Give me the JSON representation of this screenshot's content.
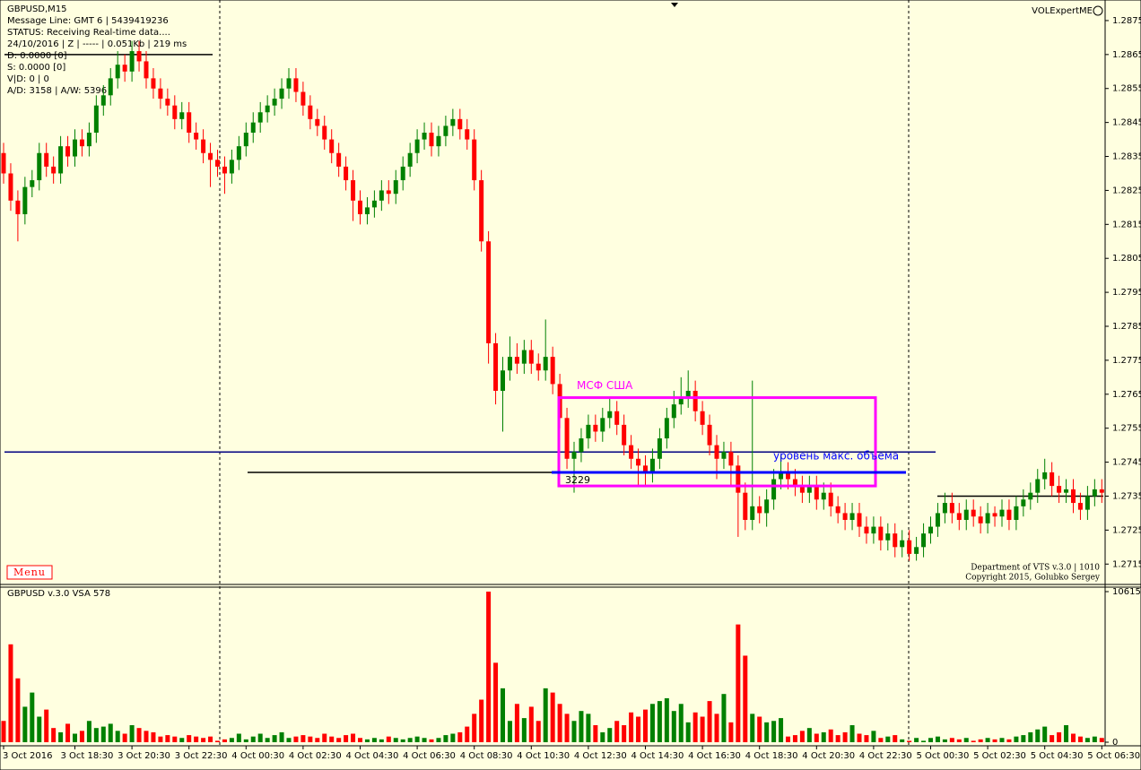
{
  "chart_data": [
    {
      "type": "candlestick",
      "title": "GBPUSD,M15",
      "info": [
        "Message Line: GMT 6 | 5439419236",
        "STATUS:  Receiving Real-time data....",
        "24/10/2016 | Z | ----- | 0.051Kb | 219 ms",
        "D: 0.0000  [0]",
        "S: 0.0000  [0]",
        "V|D: 0 | 0",
        "A/D: 3158 | A/W: 5396"
      ],
      "corner_label": "VOLExpertME",
      "menu": "Menu",
      "credits": [
        "Department of VTS  v.3.0 | 1010",
        "Copyright 2015, Golubko Sergey"
      ],
      "up_color": "#008000",
      "down_color": "#ff0000",
      "ylim": [
        1.2709,
        1.288
      ],
      "yticks": [
        1.2875,
        1.2865,
        1.2855,
        1.2845,
        1.2835,
        1.2825,
        1.2815,
        1.2805,
        1.2795,
        1.2785,
        1.2775,
        1.2765,
        1.2755,
        1.2745,
        1.2735,
        1.2725,
        1.2715
      ],
      "levels": [
        {
          "value": 1.2865,
          "color": "#000000"
        },
        {
          "value": 1.2748,
          "color": "#000080"
        },
        {
          "value": 1.2742,
          "color": "#000000"
        },
        {
          "value": 1.2735,
          "color": "#000000"
        }
      ],
      "zone": {
        "label": "МСФ США",
        "ylim": [
          1.2738,
          1.2764
        ],
        "color": "#ff00ff"
      },
      "max_volume_level": {
        "label": "уровень макс. объема",
        "value": 1.2742,
        "color": "#0000ff",
        "volume": "3229"
      },
      "open": [
        1.2836,
        1.283,
        1.2822,
        1.2818,
        1.2826,
        1.2828,
        1.2836,
        1.2832,
        1.283,
        1.2838,
        1.2835,
        1.284,
        1.2838,
        1.2842,
        1.285,
        1.2853,
        1.2858,
        1.2862,
        1.286,
        1.2866,
        1.2863,
        1.2858,
        1.2855,
        1.2852,
        1.285,
        1.2846,
        1.2848,
        1.2842,
        1.284,
        1.2836,
        1.2834,
        1.2832,
        1.283,
        1.2834,
        1.2838,
        1.2842,
        1.2845,
        1.2848,
        1.285,
        1.2852,
        1.2855,
        1.2858,
        1.2854,
        1.285,
        1.2846,
        1.2844,
        1.284,
        1.2836,
        1.2832,
        1.2828,
        1.2822,
        1.2818,
        1.282,
        1.2822,
        1.2825,
        1.2824,
        1.2828,
        1.2832,
        1.2836,
        1.284,
        1.2842,
        1.2838,
        1.2841,
        1.2844,
        1.2846,
        1.2843,
        1.284,
        1.2828,
        1.281,
        1.278,
        1.2766,
        1.2772,
        1.2776,
        1.2774,
        1.2778,
        1.2774,
        1.2772,
        1.2776,
        1.2768,
        1.2758,
        1.2746,
        1.2748,
        1.2752,
        1.2756,
        1.2754,
        1.2758,
        1.276,
        1.2756,
        1.275,
        1.2746,
        1.2744,
        1.2742,
        1.2746,
        1.2752,
        1.2758,
        1.2762,
        1.2764,
        1.2766,
        1.276,
        1.2756,
        1.275,
        1.2746,
        1.2748,
        1.2744,
        1.2736,
        1.2728,
        1.2732,
        1.273,
        1.2734,
        1.274,
        1.2742,
        1.274,
        1.2738,
        1.2736,
        1.2738,
        1.2734,
        1.2736,
        1.2732,
        1.273,
        1.2728,
        1.273,
        1.2726,
        1.2724,
        1.2726,
        1.2722,
        1.2724,
        1.272,
        1.2722,
        1.2718,
        1.272,
        1.2724,
        1.2726,
        1.273,
        1.2733,
        1.273,
        1.2728,
        1.2731,
        1.2729,
        1.2727,
        1.273,
        1.2729,
        1.2731,
        1.2728,
        1.2732,
        1.2734,
        1.2736,
        1.274,
        1.2742,
        1.2738,
        1.2736,
        1.2737,
        1.2733,
        1.2731,
        1.2735,
        1.2737
      ],
      "high": [
        1.2839,
        1.2833,
        1.2825,
        1.2829,
        1.2831,
        1.2839,
        1.2839,
        1.2835,
        1.2841,
        1.2841,
        1.2843,
        1.2843,
        1.2845,
        1.2853,
        1.2856,
        1.2861,
        1.2866,
        1.2865,
        1.2869,
        1.2869,
        1.2866,
        1.2861,
        1.2858,
        1.2855,
        1.2853,
        1.2851,
        1.2851,
        1.2845,
        1.2843,
        1.2839,
        1.2837,
        1.2835,
        1.2837,
        1.2841,
        1.2845,
        1.2848,
        1.2851,
        1.2853,
        1.2855,
        1.2858,
        1.2861,
        1.2861,
        1.2857,
        1.2853,
        1.2849,
        1.2847,
        1.2843,
        1.2839,
        1.2835,
        1.2831,
        1.2825,
        1.2823,
        1.2825,
        1.2828,
        1.2828,
        1.2831,
        1.2835,
        1.2839,
        1.2843,
        1.2845,
        1.2845,
        1.2844,
        1.2847,
        1.2849,
        1.2849,
        1.2846,
        1.2843,
        1.2831,
        1.2813,
        1.2783,
        1.2776,
        1.2782,
        1.278,
        1.2781,
        1.2781,
        1.2777,
        1.2787,
        1.2779,
        1.2771,
        1.2761,
        1.2751,
        1.2755,
        1.2759,
        1.2759,
        1.2761,
        1.2764,
        1.2763,
        1.2759,
        1.2753,
        1.2749,
        1.2747,
        1.2749,
        1.2755,
        1.2761,
        1.2766,
        1.277,
        1.2772,
        1.2769,
        1.2763,
        1.2759,
        1.2753,
        1.2751,
        1.2751,
        1.2747,
        1.2739,
        1.2769,
        1.2735,
        1.2737,
        1.2743,
        1.2747,
        1.2745,
        1.2743,
        1.2741,
        1.2741,
        1.2741,
        1.2739,
        1.2739,
        1.2735,
        1.2733,
        1.2733,
        1.2733,
        1.2729,
        1.2729,
        1.2729,
        1.2727,
        1.2727,
        1.2725,
        1.2725,
        1.2723,
        1.2727,
        1.2729,
        1.2733,
        1.2736,
        1.2736,
        1.2733,
        1.2734,
        1.2734,
        1.2732,
        1.2733,
        1.2732,
        1.2734,
        1.2734,
        1.2735,
        1.2737,
        1.2739,
        1.2743,
        1.2746,
        1.2745,
        1.2741,
        1.274,
        1.274,
        1.2736,
        1.2738,
        1.274,
        1.274
      ],
      "low": [
        1.2827,
        1.2819,
        1.281,
        1.2815,
        1.2823,
        1.2825,
        1.2829,
        1.2827,
        1.2827,
        1.2832,
        1.2832,
        1.2835,
        1.2835,
        1.2839,
        1.2847,
        1.285,
        1.2855,
        1.2857,
        1.2857,
        1.286,
        1.2855,
        1.2852,
        1.2849,
        1.2847,
        1.2843,
        1.2843,
        1.2839,
        1.2837,
        1.2833,
        1.2826,
        1.2829,
        1.2824,
        1.2827,
        1.2831,
        1.2835,
        1.2839,
        1.2842,
        1.2845,
        1.2847,
        1.2849,
        1.2852,
        1.2851,
        1.2847,
        1.2843,
        1.2841,
        1.2837,
        1.2833,
        1.2829,
        1.2825,
        1.2816,
        1.2815,
        1.2815,
        1.2817,
        1.2819,
        1.2821,
        1.2821,
        1.2825,
        1.2829,
        1.2833,
        1.2837,
        1.2835,
        1.2835,
        1.2838,
        1.2841,
        1.284,
        1.2837,
        1.2825,
        1.2807,
        1.2774,
        1.2762,
        1.2754,
        1.2769,
        1.2771,
        1.2771,
        1.2771,
        1.2769,
        1.2769,
        1.2765,
        1.2755,
        1.2743,
        1.2736,
        1.2745,
        1.2749,
        1.2751,
        1.2751,
        1.2755,
        1.2753,
        1.2747,
        1.2743,
        1.2738,
        1.2738,
        1.2739,
        1.2743,
        1.2749,
        1.2755,
        1.2759,
        1.2761,
        1.2757,
        1.2753,
        1.2747,
        1.274,
        1.2743,
        1.2738,
        1.2723,
        1.2725,
        1.2725,
        1.2727,
        1.2726,
        1.2731,
        1.2737,
        1.2737,
        1.2735,
        1.2733,
        1.2733,
        1.2731,
        1.2731,
        1.2729,
        1.2727,
        1.2725,
        1.2725,
        1.2723,
        1.2721,
        1.2721,
        1.2719,
        1.2719,
        1.2717,
        1.2717,
        1.2716,
        1.2716,
        1.2717,
        1.2721,
        1.2723,
        1.2727,
        1.2727,
        1.2725,
        1.2725,
        1.2726,
        1.2724,
        1.2724,
        1.2726,
        1.2726,
        1.2725,
        1.2725,
        1.2729,
        1.2731,
        1.2733,
        1.2737,
        1.2735,
        1.2733,
        1.2733,
        1.273,
        1.2728,
        1.2728,
        1.2732,
        1.2733
      ],
      "close": [
        1.283,
        1.2822,
        1.2818,
        1.2826,
        1.2828,
        1.2836,
        1.2832,
        1.283,
        1.2838,
        1.2835,
        1.284,
        1.2838,
        1.2842,
        1.285,
        1.2853,
        1.2858,
        1.2862,
        1.286,
        1.2866,
        1.2863,
        1.2858,
        1.2855,
        1.2852,
        1.285,
        1.2846,
        1.2848,
        1.2842,
        1.284,
        1.2836,
        1.2834,
        1.2832,
        1.283,
        1.2834,
        1.2838,
        1.2842,
        1.2845,
        1.2848,
        1.285,
        1.2852,
        1.2855,
        1.2858,
        1.2854,
        1.285,
        1.2846,
        1.2844,
        1.284,
        1.2836,
        1.2832,
        1.2828,
        1.2822,
        1.2818,
        1.282,
        1.2822,
        1.2825,
        1.2824,
        1.2828,
        1.2832,
        1.2836,
        1.284,
        1.2842,
        1.2838,
        1.2841,
        1.2844,
        1.2846,
        1.2843,
        1.284,
        1.2828,
        1.281,
        1.278,
        1.2766,
        1.2772,
        1.2776,
        1.2774,
        1.2778,
        1.2774,
        1.2772,
        1.2776,
        1.2768,
        1.2758,
        1.2746,
        1.2748,
        1.2752,
        1.2756,
        1.2754,
        1.2758,
        1.276,
        1.2756,
        1.275,
        1.2746,
        1.2744,
        1.2742,
        1.2746,
        1.2752,
        1.2758,
        1.2762,
        1.2764,
        1.2766,
        1.276,
        1.2756,
        1.275,
        1.2746,
        1.2748,
        1.2744,
        1.2736,
        1.2728,
        1.2732,
        1.273,
        1.2734,
        1.274,
        1.2742,
        1.274,
        1.2738,
        1.2736,
        1.2738,
        1.2734,
        1.2736,
        1.2732,
        1.273,
        1.2728,
        1.273,
        1.2726,
        1.2724,
        1.2726,
        1.2722,
        1.2724,
        1.272,
        1.2722,
        1.2718,
        1.272,
        1.2724,
        1.2726,
        1.273,
        1.2733,
        1.273,
        1.2728,
        1.2731,
        1.2729,
        1.2727,
        1.273,
        1.2729,
        1.2731,
        1.2728,
        1.2732,
        1.2734,
        1.2736,
        1.274,
        1.2742,
        1.2738,
        1.2736,
        1.2737,
        1.2733,
        1.2731,
        1.2735,
        1.2737,
        1.2736
      ]
    },
    {
      "type": "bar",
      "title": "GBPUSD v.3.0 VSA 578",
      "ylim": [
        0,
        10615
      ],
      "yticks": [
        0,
        10615
      ],
      "categories": [
        "3 Oct 2016",
        null,
        null,
        null,
        null,
        null,
        null,
        null,
        null,
        null,
        "3 Oct 18:30",
        null,
        null,
        null,
        null,
        null,
        null,
        null,
        "3 Oct 20:30",
        null,
        null,
        null,
        null,
        null,
        null,
        null,
        "3 Oct 22:30",
        null,
        null,
        null,
        null,
        null,
        null,
        null,
        "4 Oct 00:30",
        null,
        null,
        null,
        null,
        null,
        null,
        null,
        "4 Oct 02:30",
        null,
        null,
        null,
        null,
        null,
        null,
        null,
        "4 Oct 04:30",
        null,
        null,
        null,
        null,
        null,
        null,
        null,
        "4 Oct 06:30",
        null,
        null,
        null,
        null,
        null,
        null,
        null,
        "4 Oct 08:30",
        null,
        null,
        null,
        null,
        null,
        null,
        null,
        "4 Oct 10:30",
        null,
        null,
        null,
        null,
        null,
        null,
        null,
        "4 Oct 12:30",
        null,
        null,
        null,
        null,
        null,
        null,
        null,
        "4 Oct 14:30",
        null,
        null,
        null,
        null,
        null,
        null,
        null,
        "4 Oct 16:30",
        null,
        null,
        null,
        null,
        null,
        null,
        null,
        "4 Oct 18:30",
        null,
        null,
        null,
        null,
        null,
        null,
        null,
        "4 Oct 20:30",
        null,
        null,
        null,
        null,
        null,
        null,
        null,
        "4 Oct 22:30",
        null,
        null,
        null,
        null,
        null,
        null,
        null,
        "5 Oct 00:30",
        null,
        null,
        null,
        null,
        null,
        null,
        null,
        "5 Oct 02:30",
        null,
        null,
        null,
        null,
        null,
        null,
        null,
        "5 Oct 04:30",
        null,
        null,
        null,
        null,
        null,
        null,
        null,
        "5 Oct 06:30"
      ],
      "values": [
        1500,
        6900,
        4500,
        2500,
        3500,
        1800,
        2300,
        1000,
        700,
        1300,
        600,
        800,
        1500,
        1000,
        1100,
        1300,
        800,
        600,
        1200,
        1000,
        800,
        700,
        400,
        500,
        400,
        300,
        500,
        400,
        300,
        400,
        100,
        200,
        300,
        600,
        200,
        400,
        600,
        300,
        500,
        700,
        300,
        400,
        500,
        400,
        300,
        600,
        400,
        300,
        500,
        600,
        300,
        200,
        300,
        200,
        400,
        300,
        200,
        300,
        400,
        300,
        200,
        300,
        500,
        600,
        700,
        1100,
        2000,
        3000,
        10615,
        5600,
        3800,
        1500,
        2700,
        1700,
        2500,
        1500,
        3800,
        3500,
        2700,
        2000,
        1500,
        2200,
        2000,
        1200,
        700,
        1000,
        1500,
        1200,
        2100,
        1800,
        2300,
        2700,
        2900,
        3100,
        2200,
        2700,
        1400,
        2100,
        1800,
        2900,
        2000,
        3400,
        1400,
        8300,
        6100,
        2000,
        1800,
        1400,
        1500,
        1700,
        400,
        500,
        800,
        1000,
        600,
        700,
        900,
        500,
        700,
        1200,
        600,
        500,
        800,
        300,
        400,
        500,
        200,
        100,
        300,
        100,
        300,
        400,
        200,
        300,
        200,
        300,
        100,
        200,
        300,
        200,
        300,
        200,
        400,
        500,
        700,
        900,
        1100,
        500,
        700,
        1200,
        600,
        400,
        300,
        400,
        300
      ]
    }
  ]
}
